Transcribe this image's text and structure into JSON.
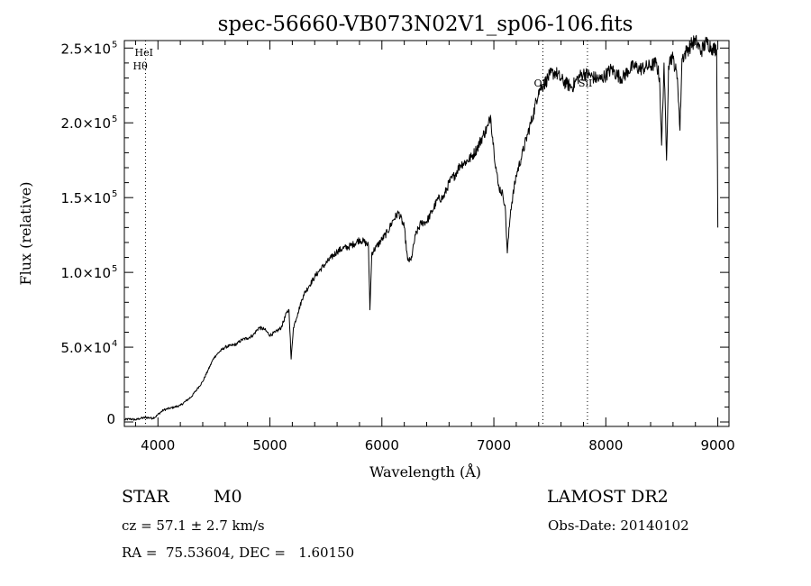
{
  "chart_data": {
    "type": "line",
    "title": "spec-56660-VB073N02V1_sp06-106.fits",
    "xlabel": "Wavelength (Å)",
    "ylabel": "Flux (relative)",
    "xlim": [
      3700,
      9100
    ],
    "ylim": [
      -3000,
      255000
    ],
    "x_ticks": [
      {
        "value": 4000,
        "label": "4000"
      },
      {
        "value": 5000,
        "label": "5000"
      },
      {
        "value": 6000,
        "label": "6000"
      },
      {
        "value": 7000,
        "label": "7000"
      },
      {
        "value": 8000,
        "label": "8000"
      },
      {
        "value": 9000,
        "label": "9000"
      }
    ],
    "y_ticks": [
      {
        "value": 0,
        "mant": "0",
        "exp": ""
      },
      {
        "value": 50000,
        "mant": "5.0×10",
        "exp": "4"
      },
      {
        "value": 100000,
        "mant": "1.0×10",
        "exp": "5"
      },
      {
        "value": 150000,
        "mant": "1.5×10",
        "exp": "5"
      },
      {
        "value": 200000,
        "mant": "2.0×10",
        "exp": "5"
      },
      {
        "value": 250000,
        "mant": "2.5×10",
        "exp": "5"
      }
    ],
    "lines": [
      {
        "wavelength": 3889,
        "label": "HeI",
        "label2": "Hθ"
      },
      {
        "wavelength": 7438,
        "label": "OI",
        "label2": ""
      },
      {
        "wavelength": 7836,
        "label": "SiI",
        "label2": ""
      }
    ],
    "series": [
      {
        "x": [
          3700,
          3750,
          3800,
          3850,
          3900,
          3950,
          3980,
          4000,
          4050,
          4100,
          4150,
          4200,
          4250,
          4300,
          4350,
          4400,
          4450,
          4500,
          4550,
          4600,
          4650,
          4700,
          4750,
          4800,
          4850,
          4900,
          4950,
          5000,
          5050,
          5100,
          5150,
          5170,
          5190,
          5210,
          5250,
          5300,
          5350,
          5400,
          5450,
          5500,
          5550,
          5600,
          5650,
          5700,
          5750,
          5800,
          5850,
          5880,
          5893,
          5910,
          5950,
          6000,
          6050,
          6100,
          6150,
          6200,
          6230,
          6260,
          6300,
          6350,
          6400,
          6450,
          6500,
          6550,
          6600,
          6650,
          6700,
          6750,
          6800,
          6850,
          6900,
          6950,
          6970,
          7000,
          7040,
          7080,
          7100,
          7120,
          7150,
          7200,
          7250,
          7300,
          7350,
          7400,
          7450,
          7500,
          7550,
          7600,
          7650,
          7700,
          7750,
          7800,
          7850,
          7900,
          7950,
          8000,
          8050,
          8100,
          8150,
          8200,
          8250,
          8300,
          8350,
          8400,
          8450,
          8480,
          8498,
          8520,
          8542,
          8560,
          8580,
          8600,
          8640,
          8662,
          8680,
          8720,
          8760,
          8800,
          8850,
          8900,
          8950,
          8990,
          9000
        ],
        "y": [
          1500,
          2000,
          1500,
          2500,
          3000,
          2500,
          3500,
          5000,
          8000,
          9000,
          10000,
          11000,
          14000,
          17000,
          22000,
          27000,
          35000,
          43000,
          47000,
          50000,
          51000,
          52000,
          55000,
          56000,
          58000,
          63000,
          62000,
          58000,
          60000,
          63000,
          73000,
          75000,
          42000,
          63000,
          73000,
          85000,
          91000,
          97000,
          102000,
          106000,
          110000,
          114000,
          116000,
          117000,
          119000,
          122000,
          120000,
          118000,
          75000,
          113000,
          117000,
          122000,
          127000,
          135000,
          140000,
          130000,
          108000,
          108000,
          125000,
          133000,
          134000,
          141000,
          149000,
          150000,
          160000,
          165000,
          172000,
          174000,
          177000,
          183000,
          191000,
          198000,
          205000,
          182000,
          158000,
          152000,
          145000,
          113000,
          142000,
          165000,
          178000,
          192000,
          205000,
          222000,
          226000,
          232000,
          234000,
          229000,
          226000,
          224000,
          230000,
          233000,
          232000,
          230000,
          229000,
          232000,
          236000,
          232000,
          230000,
          235000,
          238000,
          236000,
          237000,
          238000,
          240000,
          230000,
          185000,
          240000,
          175000,
          238000,
          244000,
          243000,
          230000,
          195000,
          243000,
          248000,
          252000,
          255000,
          248000,
          254000,
          250000,
          249000,
          130000
        ]
      }
    ]
  },
  "info": {
    "class": "STAR",
    "subclass": "M0",
    "survey": "LAMOST DR2",
    "cz": "cz = 57.1 ± 2.7 km/s",
    "obsdate": "Obs-Date: 20140102",
    "radec": "RA =  75.53604, DEC =   1.60150"
  }
}
